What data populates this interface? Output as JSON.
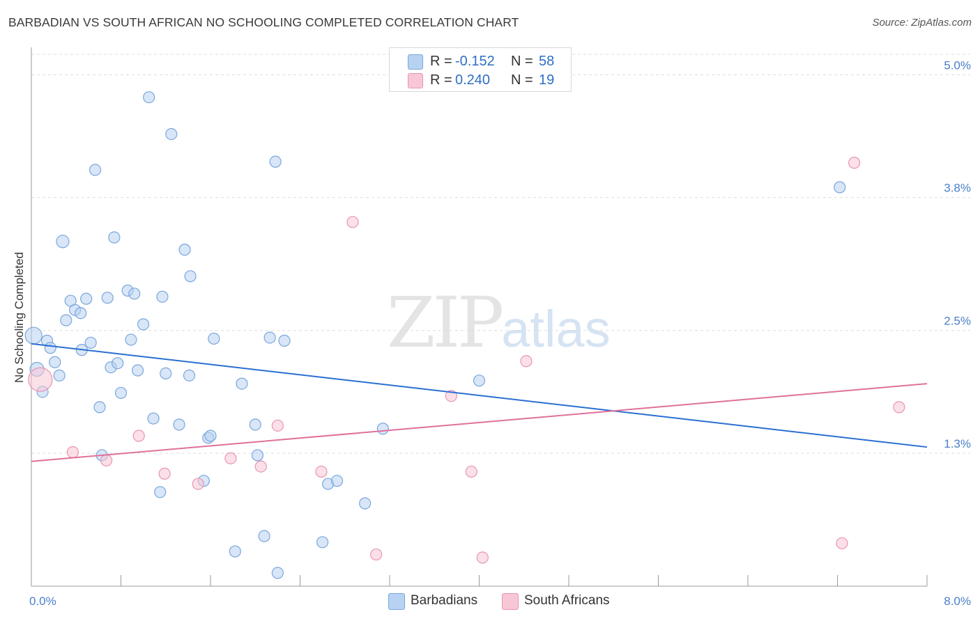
{
  "header": {
    "title": "BARBADIAN VS SOUTH AFRICAN NO SCHOOLING COMPLETED CORRELATION CHART",
    "source": "Source: ZipAtlas.com"
  },
  "watermark": {
    "zip": "ZIP",
    "atlas": "atlas"
  },
  "legend": {
    "rows": [
      {
        "r_label": "R =",
        "r_value": "-0.152",
        "n_label": "N =",
        "n_value": "58"
      },
      {
        "r_label": "R =",
        "r_value": "0.240",
        "n_label": "N =",
        "n_value": "19"
      }
    ]
  },
  "bottom_legend": {
    "series1": "Barbadians",
    "series2": "South Africans"
  },
  "colors": {
    "blue_fill": "#b8d2f3",
    "blue_stroke": "#7aa6dc",
    "blue_line": "#2a6fd1",
    "pink_fill": "#f8c7d6",
    "pink_stroke": "#e895b0",
    "pink_line": "#e0709a",
    "tick_label": "#4a7fc8",
    "grid": "#dddddd"
  },
  "chart_data": {
    "type": "scatter",
    "title": "BARBADIAN VS SOUTH AFRICAN NO SCHOOLING COMPLETED CORRELATION CHART",
    "xlabel": "",
    "ylabel": "No Schooling Completed",
    "xlim": [
      0,
      8.0
    ],
    "ylim": [
      0,
      5.2
    ],
    "x_tick_labels": [
      "0.0%",
      "8.0%"
    ],
    "y_ticks": [
      1.3,
      2.5,
      3.8,
      5.0
    ],
    "y_tick_labels": [
      "1.3%",
      "2.5%",
      "3.8%",
      "5.0%"
    ],
    "grid": true,
    "legend_position": "top-center",
    "series": [
      {
        "name": "Barbadians",
        "r": -0.152,
        "n": 58,
        "trend": {
          "x": [
            0,
            8.0
          ],
          "y": [
            2.37,
            1.36
          ]
        },
        "points": [
          {
            "x": 0.02,
            "y": 2.45,
            "s": 12
          },
          {
            "x": 0.05,
            "y": 2.12,
            "s": 10
          },
          {
            "x": 0.1,
            "y": 1.9,
            "s": 8
          },
          {
            "x": 0.14,
            "y": 2.4,
            "s": 8
          },
          {
            "x": 0.17,
            "y": 2.33,
            "s": 8
          },
          {
            "x": 0.21,
            "y": 2.19,
            "s": 8
          },
          {
            "x": 0.25,
            "y": 2.06,
            "s": 8
          },
          {
            "x": 0.28,
            "y": 3.37,
            "s": 9
          },
          {
            "x": 0.31,
            "y": 2.6,
            "s": 8
          },
          {
            "x": 0.35,
            "y": 2.79,
            "s": 8
          },
          {
            "x": 0.39,
            "y": 2.7,
            "s": 8
          },
          {
            "x": 0.44,
            "y": 2.67,
            "s": 8
          },
          {
            "x": 0.45,
            "y": 2.31,
            "s": 8
          },
          {
            "x": 0.49,
            "y": 2.81,
            "s": 8
          },
          {
            "x": 0.53,
            "y": 2.38,
            "s": 8
          },
          {
            "x": 0.57,
            "y": 4.07,
            "s": 8
          },
          {
            "x": 0.61,
            "y": 1.75,
            "s": 8
          },
          {
            "x": 0.63,
            "y": 1.28,
            "s": 8
          },
          {
            "x": 0.68,
            "y": 2.82,
            "s": 8
          },
          {
            "x": 0.71,
            "y": 2.14,
            "s": 8
          },
          {
            "x": 0.74,
            "y": 3.41,
            "s": 8
          },
          {
            "x": 0.77,
            "y": 2.18,
            "s": 8
          },
          {
            "x": 0.8,
            "y": 1.89,
            "s": 8
          },
          {
            "x": 0.86,
            "y": 2.89,
            "s": 8
          },
          {
            "x": 0.89,
            "y": 2.41,
            "s": 8
          },
          {
            "x": 0.92,
            "y": 2.86,
            "s": 8
          },
          {
            "x": 0.95,
            "y": 2.11,
            "s": 8
          },
          {
            "x": 1.0,
            "y": 2.56,
            "s": 8
          },
          {
            "x": 1.05,
            "y": 4.78,
            "s": 8
          },
          {
            "x": 1.09,
            "y": 1.64,
            "s": 8
          },
          {
            "x": 1.15,
            "y": 0.92,
            "s": 8
          },
          {
            "x": 1.17,
            "y": 2.83,
            "s": 8
          },
          {
            "x": 1.2,
            "y": 2.08,
            "s": 8
          },
          {
            "x": 1.25,
            "y": 4.42,
            "s": 8
          },
          {
            "x": 1.32,
            "y": 1.58,
            "s": 8
          },
          {
            "x": 1.37,
            "y": 3.29,
            "s": 8
          },
          {
            "x": 1.41,
            "y": 2.06,
            "s": 8
          },
          {
            "x": 1.42,
            "y": 3.03,
            "s": 8
          },
          {
            "x": 1.54,
            "y": 1.03,
            "s": 8
          },
          {
            "x": 1.58,
            "y": 1.45,
            "s": 8
          },
          {
            "x": 1.6,
            "y": 1.47,
            "s": 8
          },
          {
            "x": 1.63,
            "y": 2.42,
            "s": 8
          },
          {
            "x": 1.82,
            "y": 0.34,
            "s": 8
          },
          {
            "x": 1.88,
            "y": 1.98,
            "s": 8
          },
          {
            "x": 2.0,
            "y": 1.58,
            "s": 8
          },
          {
            "x": 2.02,
            "y": 1.28,
            "s": 8
          },
          {
            "x": 2.08,
            "y": 0.49,
            "s": 8
          },
          {
            "x": 2.13,
            "y": 2.43,
            "s": 8
          },
          {
            "x": 2.18,
            "y": 4.15,
            "s": 8
          },
          {
            "x": 2.2,
            "y": 0.13,
            "s": 8
          },
          {
            "x": 2.26,
            "y": 2.4,
            "s": 8
          },
          {
            "x": 2.6,
            "y": 0.43,
            "s": 8
          },
          {
            "x": 2.65,
            "y": 1.0,
            "s": 8
          },
          {
            "x": 2.73,
            "y": 1.03,
            "s": 8
          },
          {
            "x": 2.98,
            "y": 0.81,
            "s": 8
          },
          {
            "x": 3.14,
            "y": 1.54,
            "s": 8
          },
          {
            "x": 4.0,
            "y": 2.01,
            "s": 8
          },
          {
            "x": 7.22,
            "y": 3.9,
            "s": 8
          }
        ]
      },
      {
        "name": "South Africans",
        "r": 0.24,
        "n": 19,
        "trend": {
          "x": [
            0,
            8.0
          ],
          "y": [
            1.22,
            1.98
          ]
        },
        "points": [
          {
            "x": 0.08,
            "y": 2.02,
            "s": 17
          },
          {
            "x": 0.37,
            "y": 1.31,
            "s": 8
          },
          {
            "x": 0.67,
            "y": 1.23,
            "s": 8
          },
          {
            "x": 0.96,
            "y": 1.47,
            "s": 8
          },
          {
            "x": 1.19,
            "y": 1.1,
            "s": 8
          },
          {
            "x": 1.49,
            "y": 1.0,
            "s": 8
          },
          {
            "x": 1.78,
            "y": 1.25,
            "s": 8
          },
          {
            "x": 2.05,
            "y": 1.17,
            "s": 8
          },
          {
            "x": 2.2,
            "y": 1.57,
            "s": 8
          },
          {
            "x": 2.59,
            "y": 1.12,
            "s": 8
          },
          {
            "x": 2.87,
            "y": 3.56,
            "s": 8
          },
          {
            "x": 3.08,
            "y": 0.31,
            "s": 8
          },
          {
            "x": 3.93,
            "y": 1.12,
            "s": 8
          },
          {
            "x": 3.75,
            "y": 1.86,
            "s": 8
          },
          {
            "x": 4.03,
            "y": 0.28,
            "s": 8
          },
          {
            "x": 4.42,
            "y": 2.2,
            "s": 8
          },
          {
            "x": 7.35,
            "y": 4.14,
            "s": 8
          },
          {
            "x": 7.24,
            "y": 0.42,
            "s": 8
          },
          {
            "x": 7.75,
            "y": 1.75,
            "s": 8
          }
        ]
      }
    ]
  }
}
